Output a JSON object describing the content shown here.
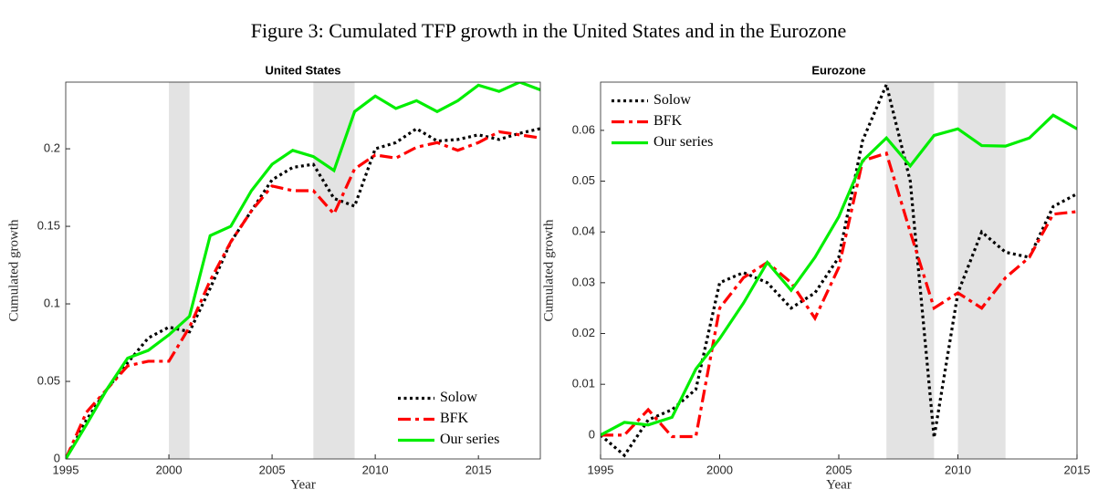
{
  "figure_title": "Figure 3: Cumulated TFP growth in the United States and in the Eurozone",
  "chart_data": [
    {
      "type": "line",
      "title": "United States",
      "xlabel": "Year",
      "ylabel": "Cumulated growth",
      "x": [
        1995,
        1996,
        1997,
        1998,
        1999,
        2000,
        2001,
        2002,
        2003,
        2004,
        2005,
        2006,
        2007,
        2008,
        2009,
        2010,
        2011,
        2012,
        2013,
        2014,
        2015,
        2016,
        2017,
        2018
      ],
      "series": [
        {
          "name": "Solow",
          "color": "#000000",
          "style": "dotted",
          "values": [
            0,
            0.025,
            0.045,
            0.062,
            0.078,
            0.085,
            0.082,
            0.11,
            0.14,
            0.16,
            0.18,
            0.188,
            0.19,
            0.168,
            0.163,
            0.2,
            0.204,
            0.213,
            0.205,
            0.206,
            0.209,
            0.206,
            0.21,
            0.213
          ]
        },
        {
          "name": "BFK",
          "color": "#ff0000",
          "style": "dashdot",
          "values": [
            0,
            0.03,
            0.045,
            0.06,
            0.063,
            0.063,
            0.085,
            0.115,
            0.14,
            0.16,
            0.176,
            0.173,
            0.173,
            0.158,
            0.187,
            0.196,
            0.194,
            0.201,
            0.204,
            0.199,
            0.204,
            0.211,
            0.209,
            0.207
          ]
        },
        {
          "name": "Our series",
          "color": "#00ee00",
          "style": "solid",
          "values": [
            0,
            0.022,
            0.045,
            0.065,
            0.07,
            0.08,
            0.092,
            0.144,
            0.15,
            0.173,
            0.19,
            0.199,
            0.195,
            0.186,
            0.224,
            0.234,
            0.226,
            0.231,
            0.224,
            0.231,
            0.241,
            0.237,
            0.243,
            0.238
          ]
        }
      ],
      "shaded_periods": [
        [
          2000,
          2001
        ],
        [
          2007,
          2009
        ]
      ],
      "xlim": [
        1995,
        2018
      ],
      "xticks": [
        1995,
        2000,
        2005,
        2010,
        2015
      ],
      "ylim": [
        0,
        0.243
      ],
      "yticks": [
        0,
        0.05,
        0.1,
        0.15,
        0.2
      ],
      "legend": "lower right"
    },
    {
      "type": "line",
      "title": "Eurozone",
      "xlabel": "Year",
      "ylabel": "Cumulated growth",
      "x": [
        1995,
        1996,
        1997,
        1998,
        1999,
        2000,
        2001,
        2002,
        2003,
        2004,
        2005,
        2006,
        2007,
        2008,
        2009,
        2010,
        2011,
        2012,
        2013,
        2014,
        2015
      ],
      "series": [
        {
          "name": "Solow",
          "color": "#000000",
          "style": "dotted",
          "values": [
            0,
            -0.004,
            0.003,
            0.005,
            0.009,
            0.03,
            0.032,
            0.03,
            0.025,
            0.028,
            0.035,
            0.058,
            0.069,
            0.05,
            -0.0005,
            0.028,
            0.04,
            0.036,
            0.035,
            0.045,
            0.0475
          ]
        },
        {
          "name": "BFK",
          "color": "#ff0000",
          "style": "dashdot",
          "values": [
            0,
            0,
            0.005,
            -0.0003,
            -0.0003,
            0.025,
            0.031,
            0.034,
            0.03,
            0.023,
            0.033,
            0.054,
            0.0555,
            0.04,
            0.025,
            0.028,
            0.025,
            0.031,
            0.035,
            0.0435,
            0.044
          ]
        },
        {
          "name": "Our series",
          "color": "#00ee00",
          "style": "solid",
          "values": [
            0,
            0.0025,
            0.002,
            0.0035,
            0.013,
            0.019,
            0.026,
            0.034,
            0.0285,
            0.035,
            0.043,
            0.054,
            0.0585,
            0.053,
            0.059,
            0.0603,
            0.057,
            0.0569,
            0.0585,
            0.063,
            0.0603
          ]
        }
      ],
      "shaded_periods": [
        [
          2007,
          2009
        ],
        [
          2010,
          2012
        ]
      ],
      "xlim": [
        1995,
        2015
      ],
      "xticks": [
        1995,
        2000,
        2005,
        2010,
        2015
      ],
      "ylim": [
        -0.0047,
        0.0695
      ],
      "yticks": [
        0,
        0.01,
        0.02,
        0.03,
        0.04,
        0.05,
        0.06
      ],
      "legend": "upper left"
    }
  ]
}
